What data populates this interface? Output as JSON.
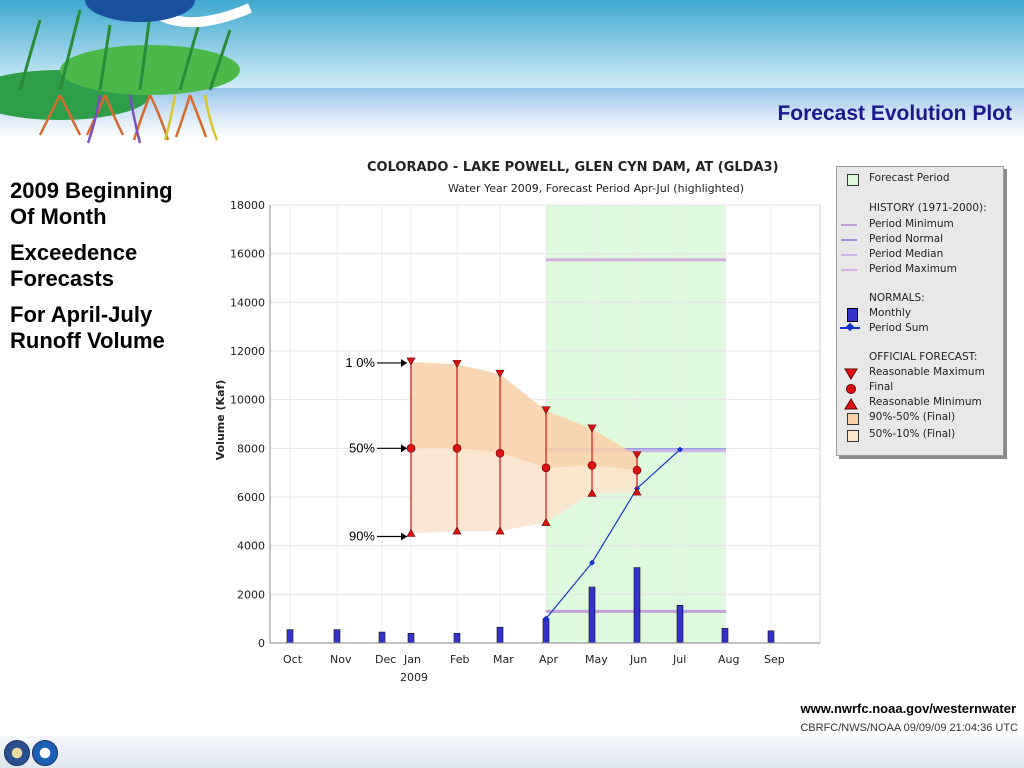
{
  "slide": {
    "title": "Forecast Evolution Plot",
    "left_text": [
      "2009 Beginning\nOf Month",
      "Exceedence\nForecasts",
      "For April-July\nRunoff Volume"
    ],
    "url": "www.nwrfc.noaa.gov/westernwater",
    "stamp": "CBRFC/NWS/NOAA 09/09/09 21:04:36 UTC"
  },
  "chart_data": {
    "type": "line",
    "title": "COLORADO - LAKE POWELL, GLEN CYN DAM, AT   (GLDA3)",
    "subtitle": "Water Year 2009, Forecast Period Apr-Jul (highlighted)",
    "ylabel": "Volume (Kaf)",
    "ylim": [
      0,
      18000
    ],
    "yticks": [
      "0",
      "2000",
      "4000",
      "6000",
      "8000",
      "10000",
      "12000",
      "14000",
      "16000",
      "18000"
    ],
    "months": [
      "Oct",
      "Nov",
      "Dec",
      "Jan",
      "Feb",
      "Mar",
      "Apr",
      "May",
      "Jun",
      "Jul",
      "Aug",
      "Sep"
    ],
    "year_label": "2009",
    "forecast_period": [
      "Apr",
      "Jul"
    ],
    "history": {
      "period_minimum": 1300,
      "period_normal": 7950,
      "period_median": 7900,
      "period_maximum": 15750
    },
    "normals_monthly": [
      {
        "month": "Oct",
        "value": 550
      },
      {
        "month": "Nov",
        "value": 550
      },
      {
        "month": "Dec",
        "value": 450
      },
      {
        "month": "Jan",
        "value": 400
      },
      {
        "month": "Feb",
        "value": 400
      },
      {
        "month": "Mar",
        "value": 650
      },
      {
        "month": "Apr",
        "value": 1000
      },
      {
        "month": "May",
        "value": 2300
      },
      {
        "month": "Jun",
        "value": 3100
      },
      {
        "month": "Jul",
        "value": 1550
      },
      {
        "month": "Aug",
        "value": 600
      },
      {
        "month": "Sep",
        "value": 500
      }
    ],
    "normals_period_sum": [
      {
        "month": "Apr",
        "value": 1000
      },
      {
        "month": "May",
        "value": 3300
      },
      {
        "month": "Jun",
        "value": 6350
      },
      {
        "month": "Jul",
        "value": 7950
      }
    ],
    "official_forecast": [
      {
        "month": "Jan",
        "max": 11550,
        "final": 8000,
        "min": 4500
      },
      {
        "month": "Feb",
        "max": 11450,
        "final": 8000,
        "min": 4600
      },
      {
        "month": "Mar",
        "max": 11050,
        "final": 7800,
        "min": 4600
      },
      {
        "month": "Apr",
        "max": 9550,
        "final": 7200,
        "min": 4950
      },
      {
        "month": "May",
        "max": 8800,
        "final": 7300,
        "min": 6150
      },
      {
        "month": "Jun",
        "max": 7700,
        "final": 7100,
        "min": 6200
      }
    ],
    "annotations": [
      "1 0%",
      "50%",
      "90%"
    ],
    "legend": {
      "forecast_period": "Forecast Period",
      "history_header": "HISTORY (1971-2000):",
      "period_minimum": "Period Minimum",
      "period_normal": "Period Normal",
      "period_median": "Period Median",
      "period_maximum": "Period Maximum",
      "normals_header": "NORMALS:",
      "monthly": "Monthly",
      "period_sum": "Period Sum",
      "official_header": "OFFICIAL FORECAST:",
      "reasonable_maximum": "Reasonable Maximum",
      "final": "Final",
      "reasonable_minimum": "Reasonable Minimum",
      "band_90_50": "90%-50% (Final)",
      "band_50_10": "50%-10% (Final)"
    },
    "colors": {
      "forecast_period": "#ddfadd",
      "band_90_50": "#fbe4cc",
      "band_50_10": "#f9cfa8",
      "forecast_marker": "#dd1111",
      "monthly_bar": "#3333cc",
      "period_sum": "#1133cc",
      "period_minimum": "#c3a0dd",
      "period_normal": "#9999e0",
      "period_median": "#c9b8e8",
      "period_maximum": "#d8aee0"
    }
  }
}
